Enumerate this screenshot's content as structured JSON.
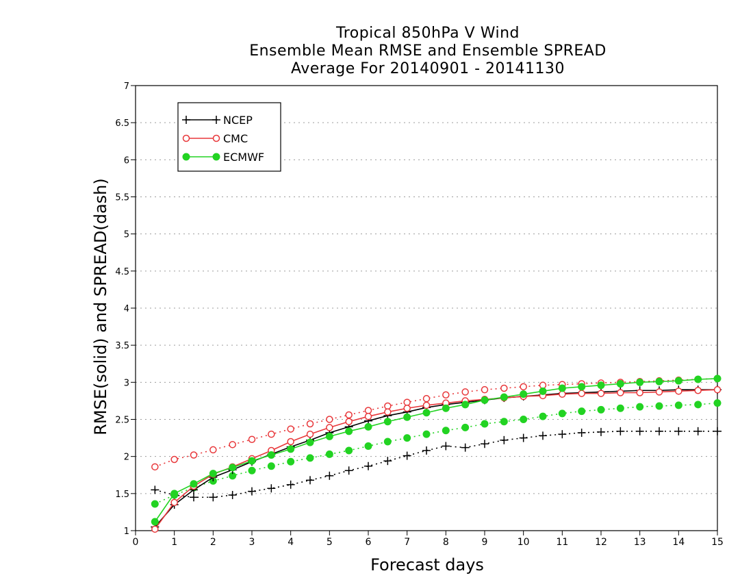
{
  "chart_data": {
    "type": "line",
    "title": [
      "Tropical 850hPa V Wind",
      "Ensemble Mean RMSE and Ensemble SPREAD",
      "Average For 20140901 - 20141130"
    ],
    "xlabel": "Forecast days",
    "ylabel": "RMSE(solid) and SPREAD(dash)",
    "xlim": [
      0,
      15
    ],
    "ylim": [
      1,
      7
    ],
    "xticks": [
      0,
      1,
      2,
      3,
      4,
      5,
      6,
      7,
      8,
      9,
      10,
      11,
      12,
      13,
      14,
      15
    ],
    "yticks": [
      1,
      1.5,
      2,
      2.5,
      3,
      3.5,
      4,
      4.5,
      5,
      5.5,
      6,
      6.5,
      7
    ],
    "ytick_labels": [
      "1",
      "1.5",
      "2",
      "2.5",
      "3",
      "3.5",
      "4",
      "4.5",
      "5",
      "5.5",
      "6",
      "6.5",
      "7"
    ],
    "grid": "horizontal dotted",
    "legend_position": "top-left",
    "x": [
      0.5,
      1,
      1.5,
      2,
      2.5,
      3,
      3.5,
      4,
      4.5,
      5,
      5.5,
      6,
      6.5,
      7,
      7.5,
      8,
      8.5,
      9,
      9.5,
      10,
      10.5,
      11,
      11.5,
      12,
      12.5,
      13,
      13.5,
      14,
      14.5,
      15
    ],
    "series": [
      {
        "name": "NCEP",
        "color": "#000000",
        "marker": "plus",
        "style": "solid",
        "values": [
          1.05,
          1.35,
          1.55,
          1.72,
          1.82,
          1.93,
          2.03,
          2.13,
          2.22,
          2.32,
          2.4,
          2.48,
          2.55,
          2.6,
          2.66,
          2.7,
          2.73,
          2.76,
          2.79,
          2.81,
          2.83,
          2.85,
          2.86,
          2.87,
          2.88,
          2.89,
          2.89,
          2.9,
          2.9,
          2.9
        ]
      },
      {
        "name": "CMC",
        "color": "#e8373a",
        "marker": "open-circle",
        "style": "solid",
        "values": [
          1.02,
          1.38,
          1.6,
          1.76,
          1.86,
          1.97,
          2.08,
          2.2,
          2.3,
          2.39,
          2.47,
          2.54,
          2.6,
          2.65,
          2.69,
          2.72,
          2.75,
          2.77,
          2.79,
          2.81,
          2.82,
          2.84,
          2.85,
          2.85,
          2.86,
          2.86,
          2.87,
          2.88,
          2.89,
          2.9
        ]
      },
      {
        "name": "ECMWF",
        "color": "#22d322",
        "marker": "filled-circle",
        "style": "solid",
        "values": [
          1.12,
          1.5,
          1.63,
          1.77,
          1.85,
          1.94,
          2.02,
          2.1,
          2.19,
          2.27,
          2.34,
          2.4,
          2.47,
          2.53,
          2.59,
          2.65,
          2.7,
          2.76,
          2.8,
          2.84,
          2.88,
          2.92,
          2.94,
          2.96,
          2.98,
          3.0,
          3.01,
          3.02,
          3.04,
          3.05
        ]
      },
      {
        "series_of": "NCEP",
        "color": "#000000",
        "marker": "plus",
        "style": "dotted",
        "values": [
          1.55,
          1.48,
          1.45,
          1.45,
          1.48,
          1.53,
          1.57,
          1.62,
          1.68,
          1.74,
          1.81,
          1.87,
          1.94,
          2.01,
          2.08,
          2.14,
          2.12,
          2.17,
          2.22,
          2.25,
          2.28,
          2.3,
          2.32,
          2.33,
          2.34,
          2.34,
          2.34,
          2.34,
          2.34,
          2.34
        ]
      },
      {
        "series_of": "CMC",
        "color": "#e8373a",
        "marker": "open-circle",
        "style": "dotted",
        "values": [
          1.86,
          1.96,
          2.02,
          2.09,
          2.16,
          2.23,
          2.3,
          2.37,
          2.44,
          2.5,
          2.56,
          2.62,
          2.68,
          2.73,
          2.78,
          2.83,
          2.87,
          2.9,
          2.92,
          2.94,
          2.96,
          2.97,
          2.98,
          2.99,
          3.0,
          3.01,
          3.02,
          3.03,
          3.04,
          3.05
        ]
      },
      {
        "series_of": "ECMWF",
        "color": "#22d322",
        "marker": "filled-circle",
        "style": "dotted",
        "values": [
          1.36,
          1.48,
          1.58,
          1.67,
          1.74,
          1.81,
          1.87,
          1.93,
          1.98,
          2.03,
          2.08,
          2.14,
          2.2,
          2.25,
          2.3,
          2.35,
          2.39,
          2.44,
          2.47,
          2.5,
          2.54,
          2.58,
          2.61,
          2.63,
          2.65,
          2.67,
          2.68,
          2.69,
          2.7,
          2.72
        ]
      }
    ]
  }
}
